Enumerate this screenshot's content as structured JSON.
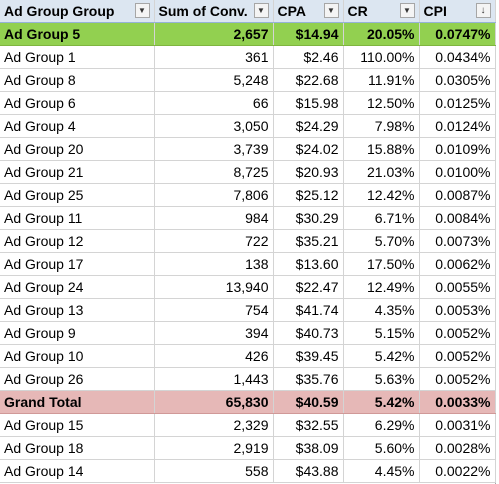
{
  "header": {
    "col1": "Ad Group Group",
    "col2": "Sum of Conv.",
    "col3": "CPA",
    "col4": "CR",
    "col5": "CPI"
  },
  "rows": [
    {
      "name": "Ad Group 5",
      "conv": "2,657",
      "cpa": "$14.94",
      "cr": "20.05%",
      "cpi": "0.0747%",
      "style": "green"
    },
    {
      "name": "Ad Group 1",
      "conv": "361",
      "cpa": "$2.46",
      "cr": "110.00%",
      "cpi": "0.0434%"
    },
    {
      "name": "Ad Group 8",
      "conv": "5,248",
      "cpa": "$22.68",
      "cr": "11.91%",
      "cpi": "0.0305%"
    },
    {
      "name": "Ad Group 6",
      "conv": "66",
      "cpa": "$15.98",
      "cr": "12.50%",
      "cpi": "0.0125%"
    },
    {
      "name": "Ad Group 4",
      "conv": "3,050",
      "cpa": "$24.29",
      "cr": "7.98%",
      "cpi": "0.0124%"
    },
    {
      "name": "Ad Group 20",
      "conv": "3,739",
      "cpa": "$24.02",
      "cr": "15.88%",
      "cpi": "0.0109%"
    },
    {
      "name": "Ad Group 21",
      "conv": "8,725",
      "cpa": "$20.93",
      "cr": "21.03%",
      "cpi": "0.0100%"
    },
    {
      "name": "Ad Group 25",
      "conv": "7,806",
      "cpa": "$25.12",
      "cr": "12.42%",
      "cpi": "0.0087%"
    },
    {
      "name": "Ad Group 11",
      "conv": "984",
      "cpa": "$30.29",
      "cr": "6.71%",
      "cpi": "0.0084%"
    },
    {
      "name": "Ad Group 12",
      "conv": "722",
      "cpa": "$35.21",
      "cr": "5.70%",
      "cpi": "0.0073%"
    },
    {
      "name": "Ad Group 17",
      "conv": "138",
      "cpa": "$13.60",
      "cr": "17.50%",
      "cpi": "0.0062%"
    },
    {
      "name": "Ad Group 24",
      "conv": "13,940",
      "cpa": "$22.47",
      "cr": "12.49%",
      "cpi": "0.0055%"
    },
    {
      "name": "Ad Group 13",
      "conv": "754",
      "cpa": "$41.74",
      "cr": "4.35%",
      "cpi": "0.0053%"
    },
    {
      "name": "Ad Group 9",
      "conv": "394",
      "cpa": "$40.73",
      "cr": "5.15%",
      "cpi": "0.0052%"
    },
    {
      "name": "Ad Group 10",
      "conv": "426",
      "cpa": "$39.45",
      "cr": "5.42%",
      "cpi": "0.0052%"
    },
    {
      "name": "Ad Group 26",
      "conv": "1,443",
      "cpa": "$35.76",
      "cr": "5.63%",
      "cpi": "0.0052%"
    },
    {
      "name": "Grand Total",
      "conv": "65,830",
      "cpa": "$40.59",
      "cr": "5.42%",
      "cpi": "0.0033%",
      "style": "red"
    },
    {
      "name": "Ad Group 15",
      "conv": "2,329",
      "cpa": "$32.55",
      "cr": "6.29%",
      "cpi": "0.0031%"
    },
    {
      "name": "Ad Group 18",
      "conv": "2,919",
      "cpa": "$38.09",
      "cr": "5.60%",
      "cpi": "0.0028%"
    },
    {
      "name": "Ad Group 14",
      "conv": "558",
      "cpa": "$43.88",
      "cr": "4.45%",
      "cpi": "0.0022%"
    }
  ],
  "colors": {
    "highlight_green": "#92d050",
    "highlight_red": "#e6b8b7",
    "header_bg": "#dce6f1"
  },
  "icons": {
    "filter": "chevron-down-icon",
    "sort": "sort-descending-icon"
  }
}
